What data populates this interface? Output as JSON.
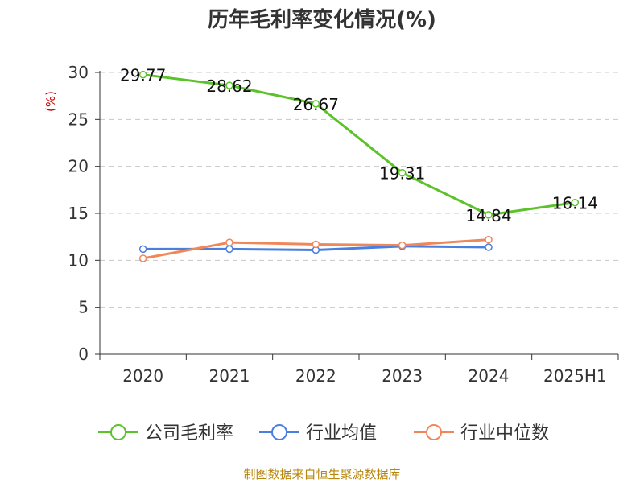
{
  "chart_data": {
    "type": "line",
    "title": "历年毛利率变化情况(%)",
    "ylabel": "(%)",
    "xlabel": "",
    "categories": [
      "2020",
      "2021",
      "2022",
      "2023",
      "2024",
      "2025H1"
    ],
    "ylim": [
      0,
      30
    ],
    "yticks": [
      0,
      5,
      10,
      15,
      20,
      25,
      30
    ],
    "grid": "horizontal-dashed",
    "legend_position": "bottom",
    "series": [
      {
        "name": "公司毛利率",
        "color": "#5cc22a",
        "values": [
          29.77,
          28.62,
          26.67,
          19.31,
          14.84,
          16.14
        ],
        "labels": [
          "29.77",
          "28.62",
          "26.67",
          "19.31",
          "14.84",
          "16.14"
        ]
      },
      {
        "name": "行业均值",
        "color": "#4a7fe0",
        "values": [
          11.2,
          11.2,
          11.1,
          11.5,
          11.4,
          null
        ]
      },
      {
        "name": "行业中位数",
        "color": "#f0875a",
        "values": [
          10.2,
          11.9,
          11.7,
          11.6,
          12.2,
          null
        ]
      }
    ]
  },
  "source": "制图数据来自恒生聚源数据库"
}
